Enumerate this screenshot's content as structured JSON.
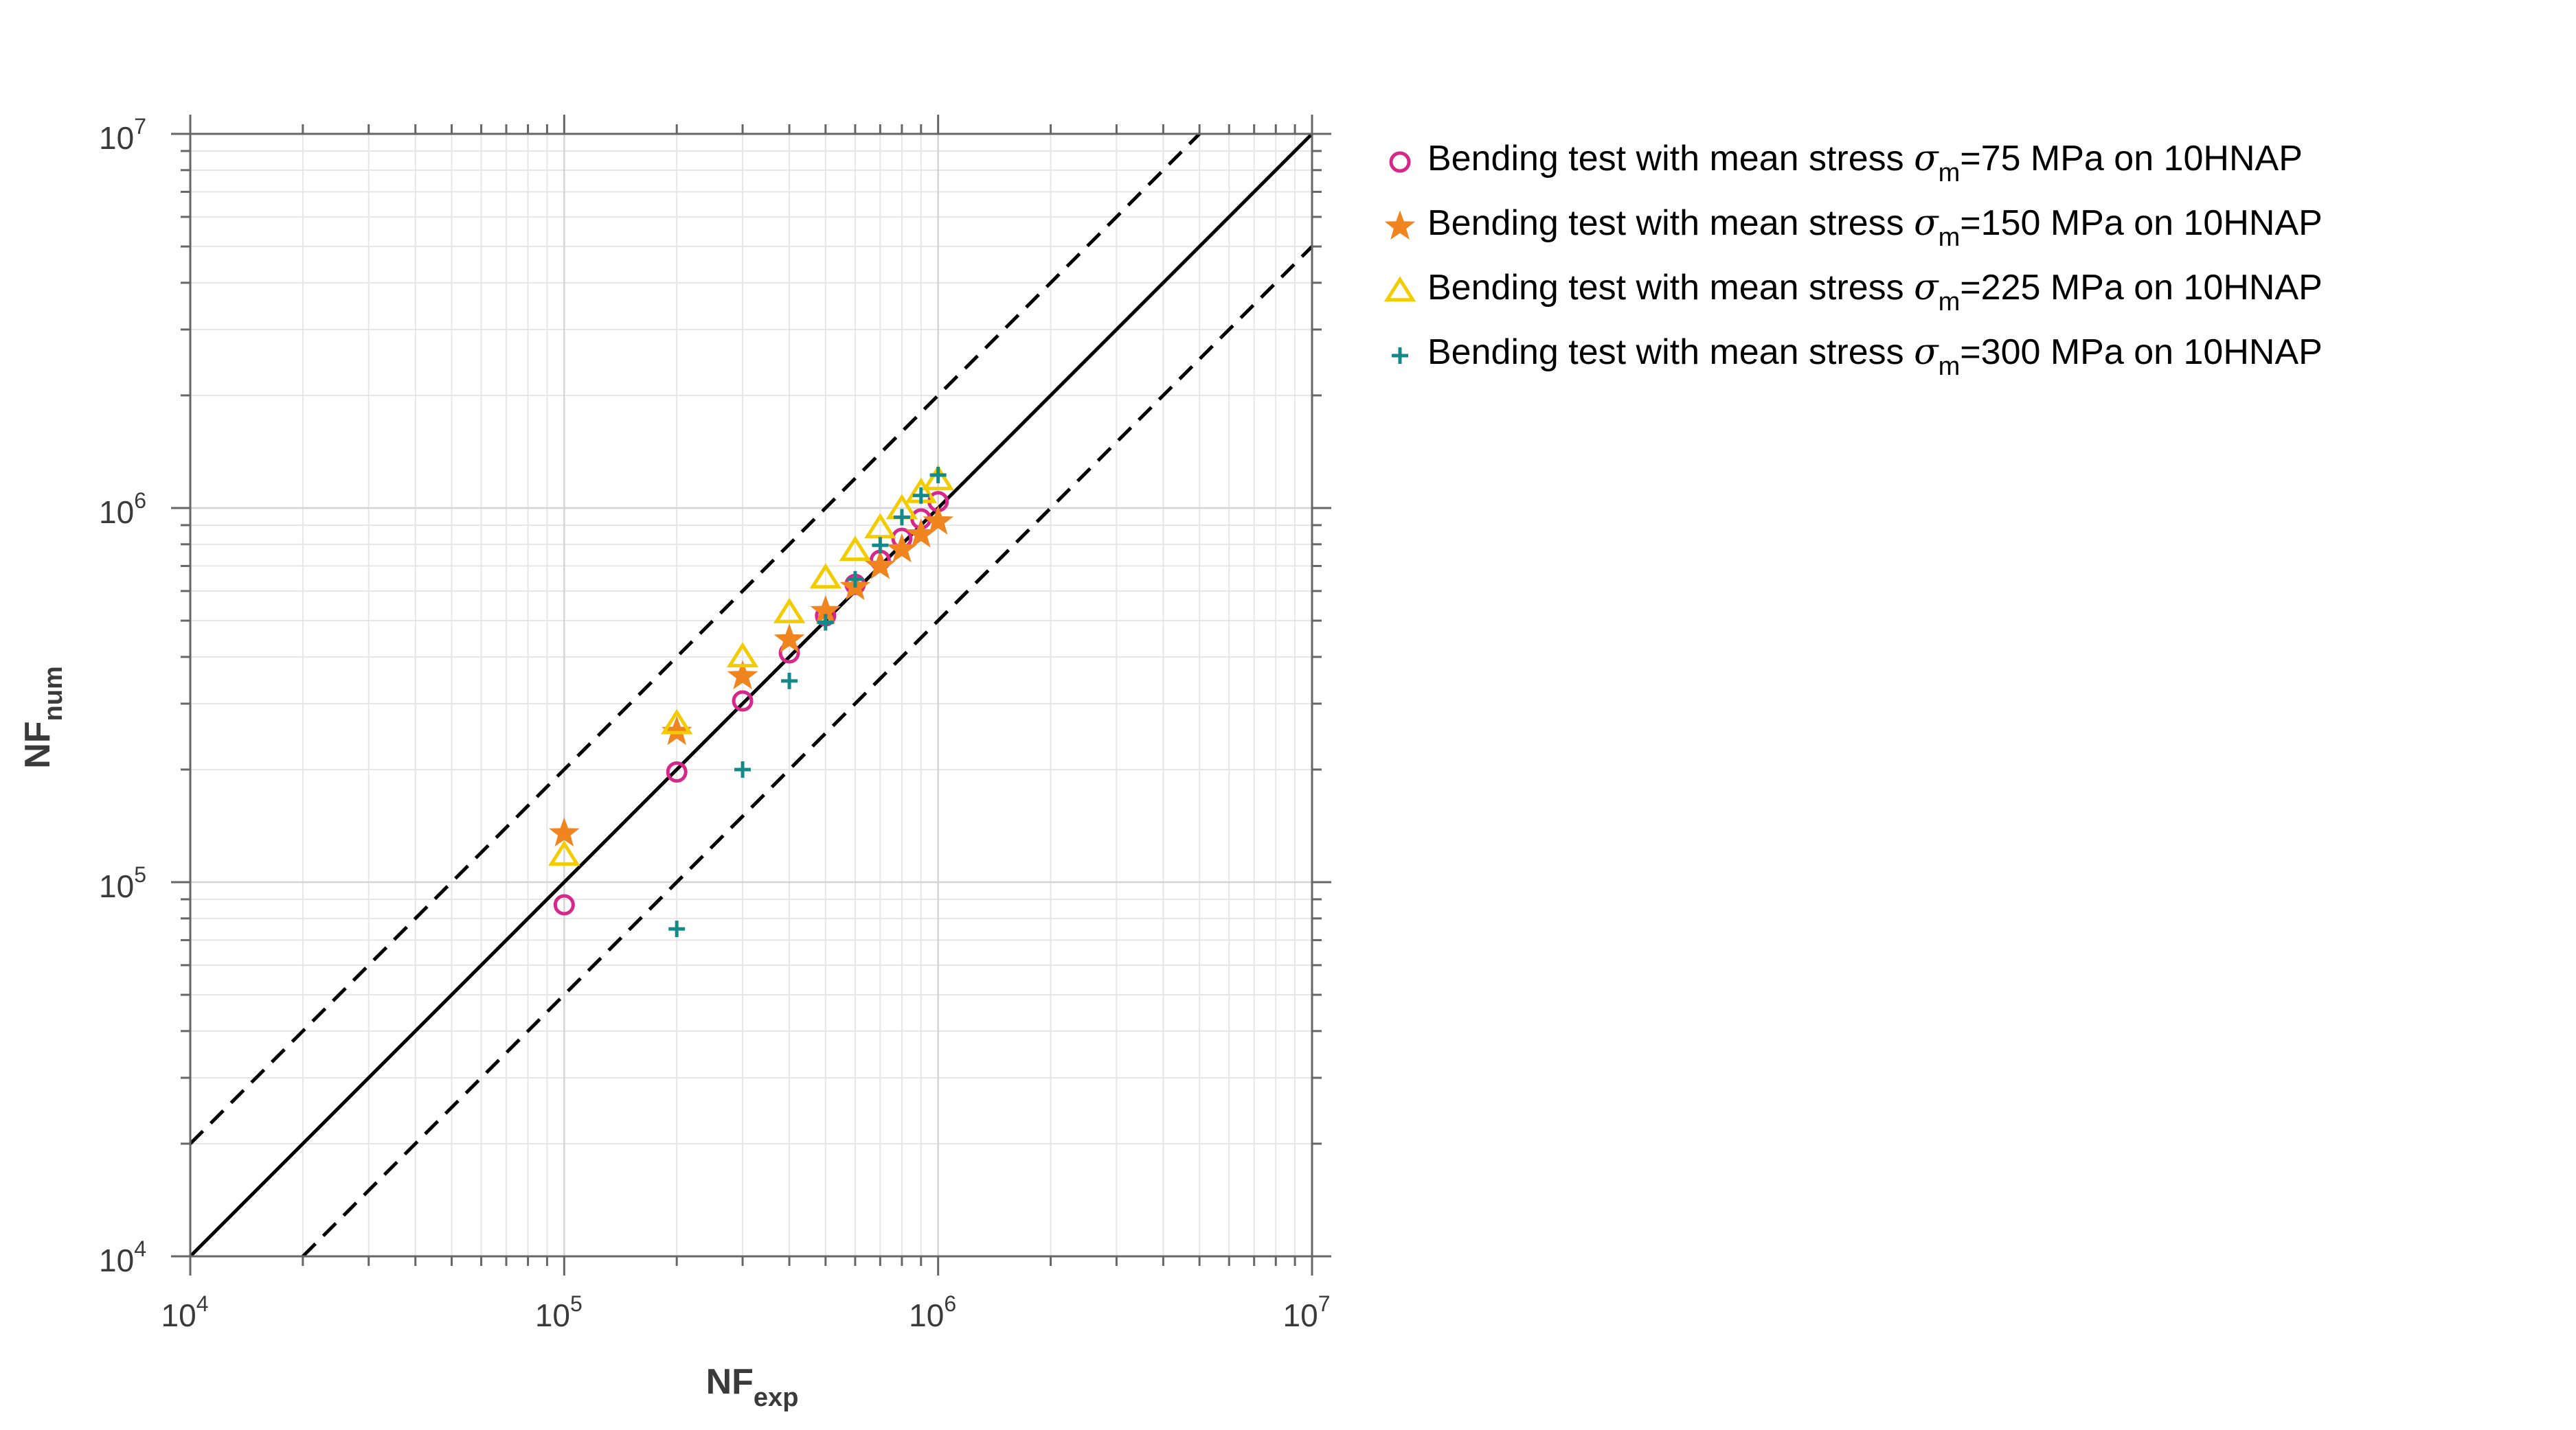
{
  "colors": {
    "background": "#ffffff",
    "axes": "#666666",
    "grid": "#e6e6e6",
    "text": "#3a3a3a",
    "reference_line": "#000000"
  },
  "chart_data": {
    "type": "scatter",
    "title": "",
    "x_scale": "log",
    "y_scale": "log",
    "xlim": [
      10000,
      10000000
    ],
    "ylim": [
      10000,
      10000000
    ],
    "grid": true,
    "legend_position": "outside-top-right",
    "xlabel": {
      "main": "NF",
      "sub": "exp"
    },
    "ylabel": {
      "main": "NF",
      "sub": "num"
    },
    "x_ticks": [
      {
        "value": 10000,
        "base": "10",
        "exp": "4"
      },
      {
        "value": 100000,
        "base": "10",
        "exp": "5"
      },
      {
        "value": 1000000,
        "base": "10",
        "exp": "6"
      },
      {
        "value": 10000000,
        "base": "10",
        "exp": "7"
      }
    ],
    "y_ticks": [
      {
        "value": 10000,
        "base": "10",
        "exp": "4"
      },
      {
        "value": 100000,
        "base": "10",
        "exp": "5"
      },
      {
        "value": 1000000,
        "base": "10",
        "exp": "6"
      },
      {
        "value": 10000000,
        "base": "10",
        "exp": "7"
      }
    ],
    "reference_lines": [
      {
        "style": "solid",
        "points": [
          [
            10000,
            10000
          ],
          [
            10000000,
            10000000
          ]
        ]
      },
      {
        "style": "dashed",
        "points": [
          [
            10000,
            20000
          ],
          [
            5000000,
            10000000
          ]
        ]
      },
      {
        "style": "dashed",
        "points": [
          [
            20000,
            10000
          ],
          [
            10000000,
            5000000
          ]
        ]
      }
    ],
    "series": [
      {
        "label_prefix": "Bending test with mean stress ",
        "sigma": "σ",
        "sigma_sub": "m",
        "label_suffix": "=75 MPa on 10HNAP",
        "marker": "circle",
        "color": "#d6278a",
        "points": [
          [
            100000,
            87000
          ],
          [
            200000,
            197000
          ],
          [
            300000,
            305000
          ],
          [
            400000,
            410000
          ],
          [
            500000,
            515000
          ],
          [
            600000,
            625000
          ],
          [
            700000,
            725000
          ],
          [
            800000,
            830000
          ],
          [
            900000,
            935000
          ],
          [
            1000000,
            1040000
          ]
        ]
      },
      {
        "label_prefix": "Bending test with mean stress ",
        "sigma": "σ",
        "sigma_sub": "m",
        "label_suffix": "=150 MPa on 10HNAP",
        "marker": "star",
        "color": "#f0841f",
        "points": [
          [
            100000,
            135000
          ],
          [
            200000,
            252000
          ],
          [
            300000,
            355000
          ],
          [
            400000,
            445000
          ],
          [
            500000,
            530000
          ],
          [
            600000,
            615000
          ],
          [
            700000,
            700000
          ],
          [
            800000,
            775000
          ],
          [
            900000,
            850000
          ],
          [
            1000000,
            920000
          ]
        ]
      },
      {
        "label_prefix": "Bending test with mean stress ",
        "sigma": "σ",
        "sigma_sub": "m",
        "label_suffix": "=225 MPa on 10HNAP",
        "marker": "triangle",
        "color": "#f2cc00",
        "points": [
          [
            100000,
            118000
          ],
          [
            200000,
            265000
          ],
          [
            300000,
            400000
          ],
          [
            400000,
            525000
          ],
          [
            500000,
            650000
          ],
          [
            600000,
            770000
          ],
          [
            700000,
            885000
          ],
          [
            800000,
            995000
          ],
          [
            900000,
            1100000
          ],
          [
            1000000,
            1190000
          ]
        ]
      },
      {
        "label_prefix": "Bending test with mean stress ",
        "sigma": "σ",
        "sigma_sub": "m",
        "label_suffix": "=300 MPa on 10HNAP",
        "marker": "plus",
        "color": "#128a8a",
        "points": [
          [
            200000,
            75000
          ],
          [
            300000,
            200000
          ],
          [
            400000,
            345000
          ],
          [
            500000,
            495000
          ],
          [
            600000,
            645000
          ],
          [
            700000,
            795000
          ],
          [
            800000,
            945000
          ],
          [
            900000,
            1080000
          ],
          [
            1000000,
            1225000
          ]
        ]
      }
    ]
  }
}
